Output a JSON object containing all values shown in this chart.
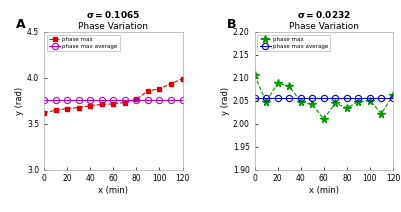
{
  "panel_A": {
    "title_sigma": "σ=0.1065",
    "title_sub": "Phase Variation",
    "xlabel": "x (min)",
    "ylabel": "y (rad)",
    "panel_label": "A",
    "x": [
      0,
      10,
      20,
      30,
      40,
      50,
      60,
      70,
      80,
      90,
      100,
      110,
      120
    ],
    "phase_max": [
      3.62,
      3.645,
      3.665,
      3.675,
      3.695,
      3.71,
      3.715,
      3.73,
      3.765,
      3.855,
      3.88,
      3.935,
      3.99
    ],
    "phase_max_avg": [
      3.755,
      3.755,
      3.755,
      3.755,
      3.755,
      3.755,
      3.755,
      3.755,
      3.755,
      3.755,
      3.755,
      3.755,
      3.755
    ],
    "ylim": [
      3.0,
      4.5
    ],
    "yticks": [
      3.0,
      3.5,
      4.0,
      4.5
    ],
    "xlim": [
      0,
      120
    ],
    "xticks": [
      0,
      20,
      40,
      60,
      80,
      100,
      120
    ],
    "phase_max_color": "#dd0000",
    "phase_max_avg_color": "#bb00bb",
    "phase_max_marker": "s",
    "phase_max_avg_marker": "o",
    "phase_max_markersize": 3.0,
    "phase_max_avg_markersize": 4.5
  },
  "panel_B": {
    "title_sigma": "σ=0.0232",
    "title_sub": "Phase Variation",
    "xlabel": "x (min)",
    "ylabel": "y (rad)",
    "panel_label": "B",
    "x": [
      0,
      10,
      20,
      30,
      40,
      50,
      60,
      70,
      80,
      90,
      100,
      110,
      120
    ],
    "phase_max": [
      2.105,
      2.048,
      2.088,
      2.082,
      2.048,
      2.042,
      2.01,
      2.045,
      2.034,
      2.048,
      2.05,
      2.022,
      2.062
    ],
    "phase_max_avg": [
      2.055,
      2.055,
      2.055,
      2.055,
      2.055,
      2.055,
      2.055,
      2.055,
      2.055,
      2.055,
      2.055,
      2.055,
      2.055
    ],
    "ylim": [
      1.9,
      2.2
    ],
    "yticks": [
      1.9,
      1.95,
      2.0,
      2.05,
      2.1,
      2.15,
      2.2
    ],
    "xlim": [
      0,
      120
    ],
    "xticks": [
      0,
      20,
      40,
      60,
      80,
      100,
      120
    ],
    "phase_max_color": "#009900",
    "phase_max_avg_color": "#0000cc",
    "phase_max_marker": "*",
    "phase_max_avg_marker": "o",
    "phase_max_markersize": 5.5,
    "phase_max_avg_markersize": 4.5
  },
  "legend_label_max": "phase max",
  "legend_label_avg": "phase max average",
  "fig_bg": "#ffffff",
  "axes_bg": "#ffffff",
  "spine_color": "#aaaaaa"
}
